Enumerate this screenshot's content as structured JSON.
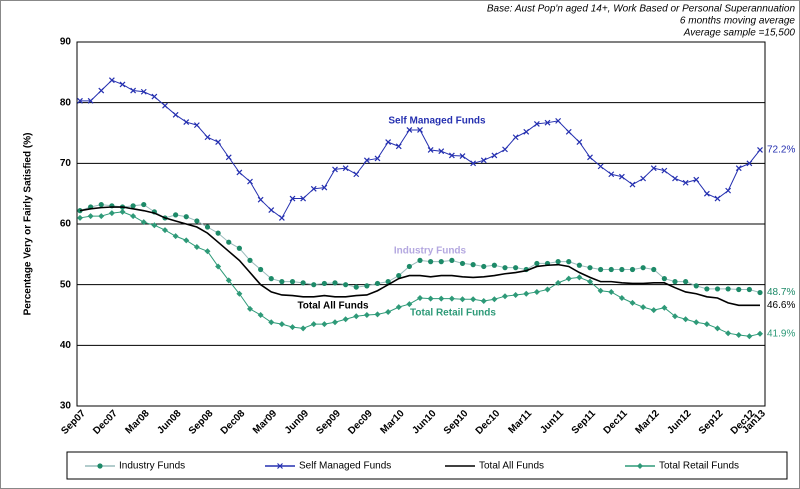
{
  "chart_data": {
    "type": "line",
    "notes": [
      "Base: Aust Pop'n aged 14+, Work Based or Personal Superannuation",
      "6 months moving average",
      "Average sample =15,500"
    ],
    "y_label": "Percentage Very or Fairly Satisfied (%)",
    "ylim": [
      30,
      90
    ],
    "yticks": [
      30,
      40,
      50,
      60,
      70,
      80,
      90
    ],
    "grid": true,
    "legend": "bottom",
    "categories": [
      "Sep07",
      null,
      null,
      "Dec07",
      null,
      null,
      "Mar08",
      null,
      null,
      "Jun08",
      null,
      null,
      "Sep08",
      null,
      null,
      "Dec08",
      null,
      null,
      "Mar09",
      null,
      null,
      "Jun09",
      null,
      null,
      "Sep09",
      null,
      null,
      "Dec09",
      null,
      null,
      "Mar10",
      null,
      null,
      "Jun10",
      null,
      null,
      "Sep10",
      null,
      null,
      "Dec10",
      null,
      null,
      "Mar11",
      null,
      null,
      "Jun11",
      null,
      null,
      "Sep11",
      null,
      null,
      "Dec11",
      null,
      null,
      "Mar12",
      null,
      null,
      "Jun12",
      null,
      null,
      "Sep12",
      null,
      null,
      "Dec12",
      "Jan13"
    ],
    "series": [
      {
        "name": "Industry Funds",
        "color": "#1d8a68",
        "marker": "circle",
        "end_label": "48.7%",
        "values": [
          62.2,
          62.8,
          63.2,
          63,
          62.8,
          63,
          63.2,
          62,
          61,
          61.5,
          61.2,
          60.5,
          59.5,
          58.5,
          57,
          56,
          54,
          52.5,
          51,
          50.5,
          50.5,
          50.3,
          50,
          50.2,
          50.3,
          50,
          49.6,
          49.8,
          50.2,
          50.5,
          51.5,
          53,
          54,
          53.8,
          53.8,
          54,
          53.5,
          53.3,
          53,
          53.2,
          52.8,
          52.8,
          52.5,
          53.5,
          53.5,
          53.8,
          53.8,
          53.2,
          52.8,
          52.5,
          52.5,
          52.5,
          52.5,
          52.8,
          52.5,
          51,
          50.5,
          50.5,
          49.8,
          49.3,
          49.3,
          49.3,
          49.2,
          49.2,
          48.7
        ]
      },
      {
        "name": "Self Managed Funds",
        "color": "#2530b0",
        "marker": "cross",
        "end_label": "72.2%",
        "values": [
          80.3,
          80.3,
          82,
          83.7,
          83,
          82,
          81.8,
          81,
          79.5,
          78,
          76.8,
          76.3,
          74.3,
          73.5,
          71,
          68.5,
          67,
          64,
          62.3,
          61,
          64.2,
          64.2,
          65.8,
          66,
          69,
          69.2,
          68.2,
          70.5,
          70.8,
          73.5,
          72.8,
          75.5,
          75.5,
          72.2,
          72,
          71.3,
          71.2,
          70,
          70.5,
          71.3,
          72.3,
          74.3,
          75.2,
          76.5,
          76.7,
          77,
          75.2,
          73.5,
          71,
          69.5,
          68.2,
          67.8,
          66.5,
          67.5,
          69.2,
          68.8,
          67.5,
          66.8,
          67.3,
          65,
          64.2,
          65.5,
          69.2,
          70,
          72.2
        ]
      },
      {
        "name": "Total All Funds",
        "color": "#000000",
        "marker": "none",
        "end_label": "46.6%",
        "values": [
          62.2,
          62.5,
          62.7,
          62.8,
          62.8,
          62.5,
          62.2,
          61.8,
          61,
          60.5,
          60,
          59.5,
          58.5,
          57,
          55.5,
          54,
          52,
          50,
          48.8,
          48.3,
          48.2,
          48,
          48,
          48.2,
          48,
          48,
          48.2,
          48.3,
          49,
          50,
          51,
          51.5,
          51.5,
          51.3,
          51.5,
          51.5,
          51.3,
          51.2,
          51.3,
          51.5,
          51.8,
          52,
          52.3,
          53,
          53.2,
          53.3,
          53,
          52,
          51.2,
          50.5,
          50.5,
          50.3,
          50.2,
          50.2,
          50.3,
          50.3,
          49.5,
          48.8,
          48.5,
          48,
          47.8,
          47,
          46.6,
          46.6,
          46.6
        ]
      },
      {
        "name": "Total Retail Funds",
        "color": "#2e9a78",
        "marker": "diamond",
        "end_label": "41.9%",
        "values": [
          61,
          61.3,
          61.3,
          61.8,
          62,
          61.3,
          60.3,
          59.8,
          59,
          58,
          57.3,
          56.2,
          55.5,
          53,
          50.7,
          48.5,
          46,
          45,
          43.8,
          43.5,
          43,
          42.8,
          43.5,
          43.5,
          43.8,
          44.3,
          44.8,
          45,
          45.1,
          45.5,
          46.3,
          46.8,
          47.8,
          47.7,
          47.7,
          47.7,
          47.6,
          47.6,
          47.3,
          47.6,
          48.1,
          48.3,
          48.5,
          48.8,
          49.2,
          50.3,
          51,
          51.2,
          50.5,
          49,
          48.8,
          47.8,
          47,
          46.3,
          45.8,
          46.2,
          44.8,
          44.3,
          43.8,
          43.5,
          42.8,
          42,
          41.7,
          41.5,
          41.9
        ]
      }
    ]
  }
}
